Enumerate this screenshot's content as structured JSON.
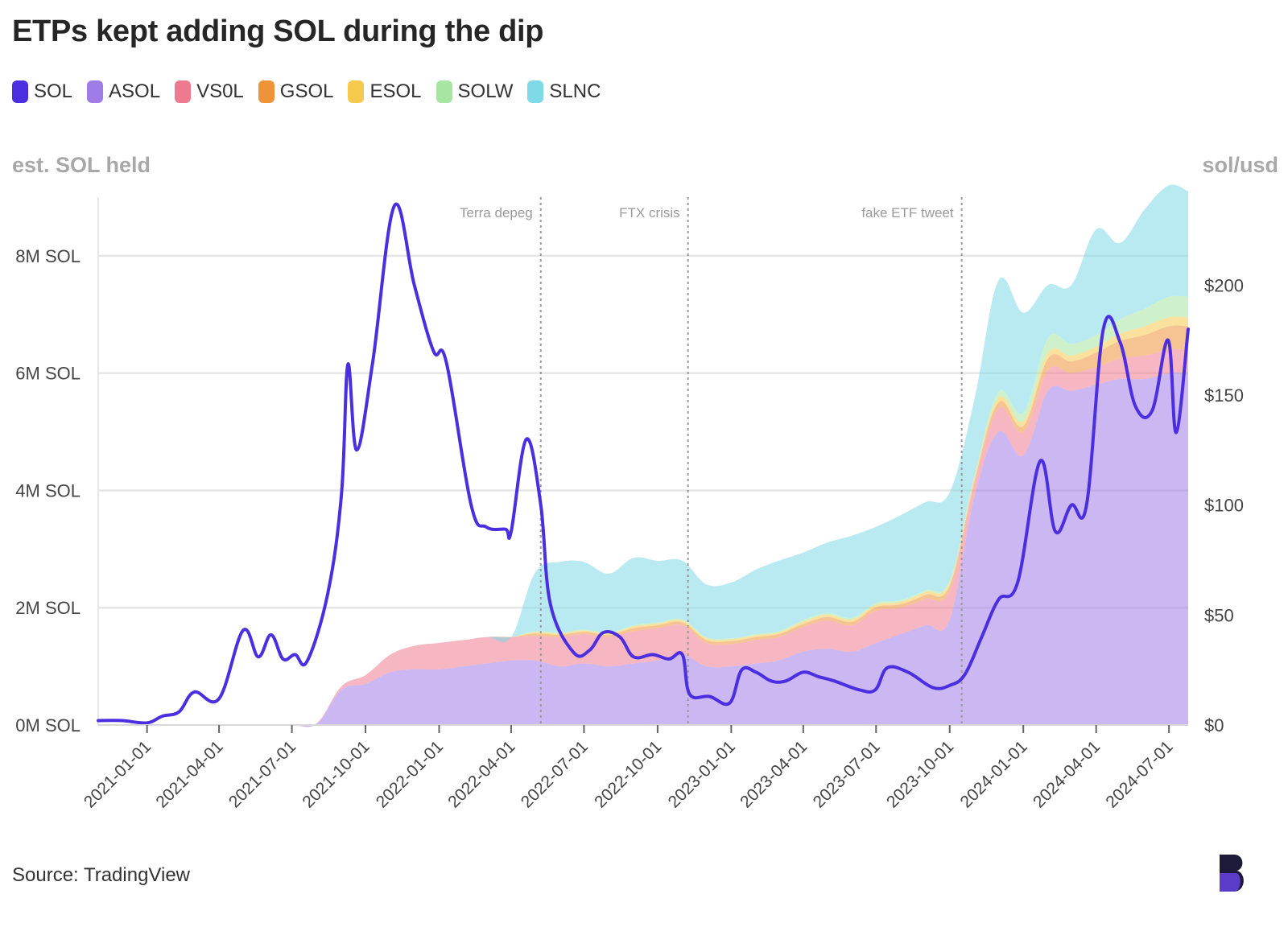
{
  "chart_data": {
    "type": "area",
    "title": "ETPs kept adding SOL during the dip",
    "ylabel_left": "est. SOL held",
    "ylabel_right": "sol/usd",
    "source": "Source: TradingView",
    "ylim_left": [
      0,
      9000000
    ],
    "ylim_right": [
      0,
      240
    ],
    "xlim": [
      "2020-11-01",
      "2024-07-25"
    ],
    "y_ticks_left": [
      {
        "value": 0,
        "label": "0M SOL"
      },
      {
        "value": 2000000,
        "label": "2M SOL"
      },
      {
        "value": 4000000,
        "label": "4M SOL"
      },
      {
        "value": 6000000,
        "label": "6M SOL"
      },
      {
        "value": 8000000,
        "label": "8M SOL"
      }
    ],
    "y_ticks_right": [
      {
        "value": 0,
        "label": "$0"
      },
      {
        "value": 50,
        "label": "$50"
      },
      {
        "value": 100,
        "label": "$100"
      },
      {
        "value": 150,
        "label": "$150"
      },
      {
        "value": 200,
        "label": "$200"
      }
    ],
    "x_ticks": [
      "2021-01-01",
      "2021-04-01",
      "2021-07-01",
      "2021-10-01",
      "2022-01-01",
      "2022-04-01",
      "2022-07-01",
      "2022-10-01",
      "2023-01-01",
      "2023-04-01",
      "2023-07-01",
      "2023-10-01",
      "2024-01-01",
      "2024-04-01",
      "2024-07-01"
    ],
    "legend": [
      {
        "name": "SOL",
        "color": "#4a2ee0"
      },
      {
        "name": "ASOL",
        "color": "#a07ce6"
      },
      {
        "name": "VS0L",
        "color": "#ee7a8f"
      },
      {
        "name": "GSOL",
        "color": "#ef9339"
      },
      {
        "name": "ESOL",
        "color": "#f5c94c"
      },
      {
        "name": "SOLW",
        "color": "#a6e5a2"
      },
      {
        "name": "SLNC",
        "color": "#7fd9e6"
      }
    ],
    "annotations": [
      {
        "date": "2022-05-08",
        "label": "Terra depeg"
      },
      {
        "date": "2022-11-08",
        "label": "FTX crisis"
      },
      {
        "date": "2023-10-16",
        "label": "fake ETF tweet"
      }
    ],
    "x": [
      "2020-11-01",
      "2020-12-01",
      "2021-01-01",
      "2021-02-01",
      "2021-03-01",
      "2021-04-01",
      "2021-05-01",
      "2021-06-01",
      "2021-07-01",
      "2021-08-01",
      "2021-09-01",
      "2021-10-01",
      "2021-11-01",
      "2021-12-01",
      "2022-01-01",
      "2022-02-01",
      "2022-03-01",
      "2022-04-01",
      "2022-05-01",
      "2022-06-01",
      "2022-07-01",
      "2022-08-01",
      "2022-09-01",
      "2022-10-01",
      "2022-11-01",
      "2022-12-01",
      "2023-01-01",
      "2023-02-01",
      "2023-03-01",
      "2023-04-01",
      "2023-05-01",
      "2023-06-01",
      "2023-07-01",
      "2023-08-01",
      "2023-09-01",
      "2023-10-01",
      "2023-11-01",
      "2023-12-01",
      "2024-01-01",
      "2024-02-01",
      "2024-03-01",
      "2024-04-01",
      "2024-05-01",
      "2024-06-01",
      "2024-07-01",
      "2024-07-25"
    ],
    "series": [
      {
        "name": "ASOL",
        "values": [
          0,
          0,
          0,
          0,
          0,
          0,
          0,
          0,
          0,
          20000,
          600000,
          700000,
          900000,
          950000,
          950000,
          1000000,
          1050000,
          1100000,
          1100000,
          1000000,
          1050000,
          1000000,
          1050000,
          1100000,
          1200000,
          1000000,
          1000000,
          1050000,
          1100000,
          1250000,
          1300000,
          1250000,
          1400000,
          1550000,
          1700000,
          1800000,
          3900000,
          5000000,
          4600000,
          5700000,
          5700000,
          5800000,
          5900000,
          5900000,
          6000000,
          6000000
        ]
      },
      {
        "name": "VS0L",
        "values": [
          0,
          0,
          0,
          0,
          0,
          0,
          0,
          0,
          0,
          10000,
          60000,
          150000,
          300000,
          400000,
          450000,
          450000,
          450000,
          400000,
          420000,
          500000,
          500000,
          500000,
          550000,
          550000,
          500000,
          400000,
          380000,
          400000,
          400000,
          420000,
          480000,
          450000,
          550000,
          450000,
          450000,
          500000,
          200000,
          400000,
          400000,
          350000,
          300000,
          300000,
          350000,
          400000,
          400000,
          400000
        ]
      },
      {
        "name": "GSOL",
        "values": [
          0,
          0,
          0,
          0,
          0,
          0,
          0,
          0,
          0,
          0,
          0,
          0,
          0,
          0,
          0,
          0,
          0,
          0,
          40000,
          40000,
          40000,
          40000,
          50000,
          50000,
          50000,
          50000,
          50000,
          50000,
          50000,
          50000,
          60000,
          60000,
          60000,
          60000,
          70000,
          80000,
          70000,
          100000,
          100000,
          200000,
          200000,
          250000,
          300000,
          350000,
          400000,
          400000
        ]
      },
      {
        "name": "ESOL",
        "values": [
          0,
          0,
          0,
          0,
          0,
          0,
          0,
          0,
          0,
          0,
          0,
          0,
          0,
          0,
          0,
          0,
          0,
          0,
          20000,
          20000,
          20000,
          20000,
          30000,
          30000,
          30000,
          30000,
          30000,
          30000,
          30000,
          40000,
          40000,
          40000,
          40000,
          40000,
          50000,
          50000,
          50000,
          80000,
          80000,
          100000,
          100000,
          100000,
          120000,
          150000,
          150000,
          150000
        ]
      },
      {
        "name": "SOLW",
        "values": [
          0,
          0,
          0,
          0,
          0,
          0,
          0,
          0,
          0,
          0,
          0,
          0,
          0,
          0,
          0,
          0,
          0,
          0,
          20000,
          20000,
          20000,
          20000,
          20000,
          20000,
          20000,
          20000,
          20000,
          20000,
          20000,
          30000,
          30000,
          30000,
          30000,
          30000,
          30000,
          40000,
          40000,
          100000,
          150000,
          250000,
          200000,
          200000,
          250000,
          300000,
          350000,
          350000
        ]
      },
      {
        "name": "SLNC",
        "values": [
          0,
          0,
          0,
          0,
          0,
          0,
          0,
          0,
          0,
          0,
          0,
          0,
          0,
          0,
          0,
          0,
          0,
          0,
          1000000,
          1200000,
          1150000,
          1000000,
          1150000,
          1050000,
          1000000,
          900000,
          950000,
          1100000,
          1200000,
          1150000,
          1200000,
          1400000,
          1300000,
          1450000,
          1500000,
          1500000,
          1300000,
          1900000,
          1700000,
          900000,
          1000000,
          1800000,
          1300000,
          1700000,
          1900000,
          1800000
        ]
      }
    ],
    "price_series": {
      "name": "SOL",
      "x": [
        "2020-11-01",
        "2020-12-01",
        "2021-01-01",
        "2021-01-20",
        "2021-02-10",
        "2021-03-01",
        "2021-04-01",
        "2021-05-01",
        "2021-05-20",
        "2021-06-05",
        "2021-06-20",
        "2021-07-05",
        "2021-07-20",
        "2021-08-15",
        "2021-09-01",
        "2021-09-09",
        "2021-09-20",
        "2021-10-10",
        "2021-11-06",
        "2021-12-01",
        "2021-12-25",
        "2022-01-10",
        "2022-02-10",
        "2022-03-01",
        "2022-03-25",
        "2022-04-01",
        "2022-04-20",
        "2022-05-08",
        "2022-05-20",
        "2022-06-18",
        "2022-07-08",
        "2022-07-25",
        "2022-08-15",
        "2022-09-01",
        "2022-09-25",
        "2022-10-15",
        "2022-11-01",
        "2022-11-10",
        "2022-12-05",
        "2022-12-30",
        "2023-01-14",
        "2023-02-01",
        "2023-02-20",
        "2023-03-10",
        "2023-04-01",
        "2023-04-20",
        "2023-05-10",
        "2023-06-10",
        "2023-06-30",
        "2023-07-15",
        "2023-08-10",
        "2023-09-10",
        "2023-10-01",
        "2023-10-20",
        "2023-11-10",
        "2023-12-01",
        "2023-12-25",
        "2024-01-22",
        "2024-02-10",
        "2024-03-01",
        "2024-03-20",
        "2024-04-10",
        "2024-05-01",
        "2024-05-20",
        "2024-06-10",
        "2024-06-30",
        "2024-07-10",
        "2024-07-25"
      ],
      "values": [
        2,
        2,
        1,
        4,
        6,
        15,
        12,
        43,
        31,
        41,
        30,
        32,
        29,
        60,
        105,
        164,
        125,
        165,
        236,
        200,
        170,
        165,
        100,
        90,
        89,
        88,
        130,
        100,
        55,
        33,
        34,
        42,
        40,
        31,
        32,
        30,
        32,
        14,
        13,
        10,
        25,
        24,
        20,
        20,
        24,
        22,
        20,
        16,
        16,
        26,
        24,
        17,
        18,
        23,
        40,
        57,
        65,
        120,
        88,
        100,
        100,
        180,
        174,
        145,
        143,
        175,
        133,
        180
      ]
    }
  }
}
